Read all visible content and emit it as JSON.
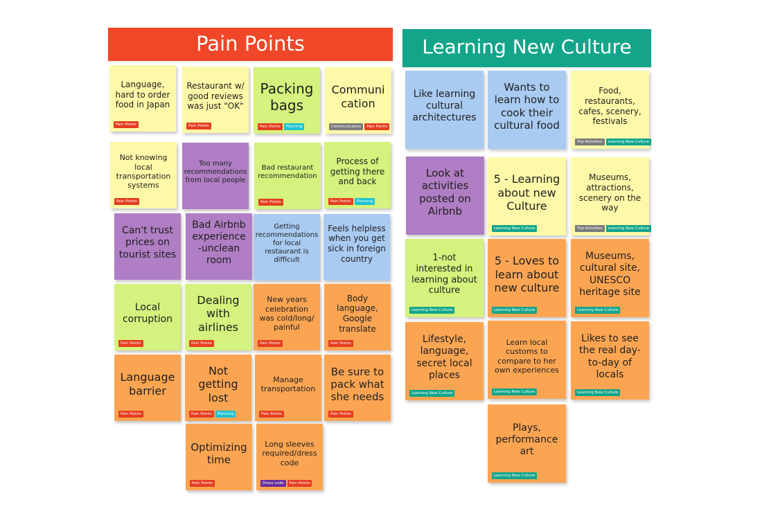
{
  "columns": [
    {
      "title": "Pain Points",
      "color": "#ef4727"
    },
    {
      "title": "Learning New Culture",
      "color": "#12a58a"
    }
  ],
  "tag_colors": {
    "Pain Points": "#e53d1f",
    "Planning": "#1fc3cf",
    "Communication": "#7b7b7b",
    "Trip Activities": "#7b7b7b",
    "Learning New Culture": "#12a58a",
    "Dress code": "#6a2f9a"
  },
  "pain_notes": [
    {
      "text": "Language, hard to order food in Japan",
      "color": "yellow",
      "tags": [
        "Pain Points"
      ]
    },
    {
      "text": "Restaurant w/ good reviews was just \"OK\"",
      "color": "yellow",
      "tags": [
        "Pain Points"
      ]
    },
    {
      "text": "Packing bags",
      "color": "green",
      "tags": [
        "Pain Points",
        "Planning"
      ]
    },
    {
      "text": "Communi cation",
      "color": "yellow",
      "tags": [
        "Communication",
        "Pain Points"
      ]
    },
    {
      "text": "Not knowing local transportation systems",
      "color": "yellow",
      "tags": [
        "Pain Points"
      ]
    },
    {
      "text": "Too many recommendations from local people",
      "color": "purple",
      "tags": []
    },
    {
      "text": "Bad restaurant recommendation",
      "color": "green",
      "tags": [
        "Pain Points"
      ]
    },
    {
      "text": "Process of getting there and back",
      "color": "green",
      "tags": [
        "Pain Points",
        "Planning"
      ]
    },
    {
      "text": "Can't trust prices on tourist sites",
      "color": "purple",
      "tags": []
    },
    {
      "text": "Bad Airbnb experience -unclean room",
      "color": "purple",
      "tags": []
    },
    {
      "text": "Getting recommendations for local restaurant is difficult",
      "color": "blue",
      "tags": []
    },
    {
      "text": "Feels helpless when you get sick in foreign country",
      "color": "blue",
      "tags": []
    },
    {
      "text": "Local corruption",
      "color": "green",
      "tags": [
        "Pain Points"
      ]
    },
    {
      "text": "Dealing with airlines",
      "color": "green",
      "tags": [
        "Pain Points"
      ]
    },
    {
      "text": "New years celebration was cold/long/ painful",
      "color": "orange",
      "tags": [
        "Pain Points"
      ]
    },
    {
      "text": "Body language, Google translate",
      "color": "orange",
      "tags": [
        "Pain Points"
      ]
    },
    {
      "text": "Language barrier",
      "color": "orange",
      "tags": [
        "Pain Points"
      ]
    },
    {
      "text": "Not getting lost",
      "color": "orange",
      "tags": [
        "Pain Points",
        "Planning"
      ]
    },
    {
      "text": "Manage transportation",
      "color": "orange",
      "tags": [
        "Pain Points"
      ]
    },
    {
      "text": "Be sure to pack what she needs",
      "color": "orange",
      "tags": [
        "Pain Points"
      ]
    },
    {
      "text": "Optimizing time",
      "color": "orange",
      "tags": [
        "Pain Points"
      ]
    },
    {
      "text": "Long sleeves required/dress code",
      "color": "orange",
      "tags": [
        "Dress code",
        "Pain Points"
      ]
    }
  ],
  "culture_notes": [
    {
      "text": "Like learning cultural architectures",
      "color": "blue",
      "tags": []
    },
    {
      "text": "Wants to learn how to cook their cultural food",
      "color": "blue",
      "tags": []
    },
    {
      "text": "Food, restaurants, cafes, scenery, festivals",
      "color": "yellow",
      "tags": [
        "Trip Activities",
        "Learning New Culture"
      ]
    },
    {
      "text": "Look at activities posted on Airbnb",
      "color": "purple",
      "tags": []
    },
    {
      "text": "5 - Learning about new Culture",
      "color": "yellow",
      "tags": [
        "Learning New Culture"
      ]
    },
    {
      "text": "Museums, attractions, scenery on the way",
      "color": "yellow",
      "tags": [
        "Trip Activities",
        "Learning New Culture"
      ]
    },
    {
      "text": "1-not interested in learning about culture",
      "color": "green",
      "tags": [
        "Learning New Culture"
      ]
    },
    {
      "text": "5 - Loves to learn about new culture",
      "color": "orange",
      "tags": [
        "Learning New Culture"
      ]
    },
    {
      "text": "Museums, cultural site, UNESCO heritage site",
      "color": "orange",
      "tags": [
        "Learning New Culture"
      ]
    },
    {
      "text": "Lifestyle, language, secret local places",
      "color": "orange",
      "tags": [
        "Learning New Culture"
      ]
    },
    {
      "text": "Learn local customs to compare to her own experiences",
      "color": "orange",
      "tags": [
        "Learning New Culture"
      ]
    },
    {
      "text": "Likes to see the real day-to-day of locals",
      "color": "orange",
      "tags": [
        "Learning New Culture"
      ]
    },
    {
      "text": "Plays, performance art",
      "color": "orange",
      "tags": [
        "Learning New Culture"
      ]
    }
  ]
}
